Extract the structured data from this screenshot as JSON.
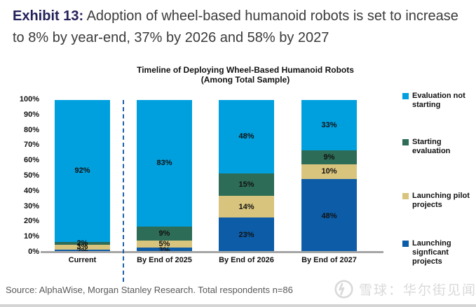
{
  "header": {
    "exhibit_label": "Exhibit 13:",
    "title": "Adoption of wheel-based humanoid robots is set to increase to 8% by year-end, 37% by 2026 and 58% by 2027"
  },
  "chart_data": {
    "type": "stacked_bar",
    "title": "Timeline of Deploying Wheel-Based Humanoid Robots",
    "subtitle": "(Among Total Sample)",
    "categories": [
      "Current",
      "By End of 2025",
      "By End of 2026",
      "By End of 2027"
    ],
    "series": [
      {
        "name": "Launching signficant projects",
        "color": "#0D5CA7",
        "values": [
          2,
          3,
          23,
          48
        ]
      },
      {
        "name": "Launching pilot projects",
        "color": "#D8C47D",
        "values": [
          3,
          5,
          14,
          10
        ]
      },
      {
        "name": "Starting evaluation",
        "color": "#2D6C57",
        "values": [
          2,
          9,
          15,
          9
        ]
      },
      {
        "name": "Evaluation not starting",
        "color": "#00A0DE",
        "values": [
          92,
          83,
          48,
          33
        ]
      }
    ],
    "stack_order": "bottom_to_top",
    "value_suffix": "%",
    "ylim": [
      0,
      100
    ],
    "y_ticks": [
      "0%",
      "10%",
      "20%",
      "30%",
      "40%",
      "50%",
      "60%",
      "70%",
      "80%",
      "90%",
      "100%"
    ],
    "grid": false,
    "legend_position": "right",
    "legend": [
      {
        "color": "#00A0DE",
        "lines": [
          "Evaluation not",
          "starting"
        ]
      },
      {
        "color": "#2D6C57",
        "lines": [
          "Starting evaluation"
        ]
      },
      {
        "color": "#D8C47D",
        "lines": [
          "Launching pilot",
          "projects"
        ]
      },
      {
        "color": "#0D5CA7",
        "lines": [
          "Launching",
          "signficant projects"
        ]
      }
    ],
    "divider_between": [
      "Current",
      "By End of 2025"
    ]
  },
  "footer": {
    "source": "Source: AlphaWise, Morgan Stanley Research. Total respondents n=86"
  },
  "watermark": {
    "logo": "xueqiu-circle-logo",
    "text": "雪球：华尔街见闻"
  }
}
